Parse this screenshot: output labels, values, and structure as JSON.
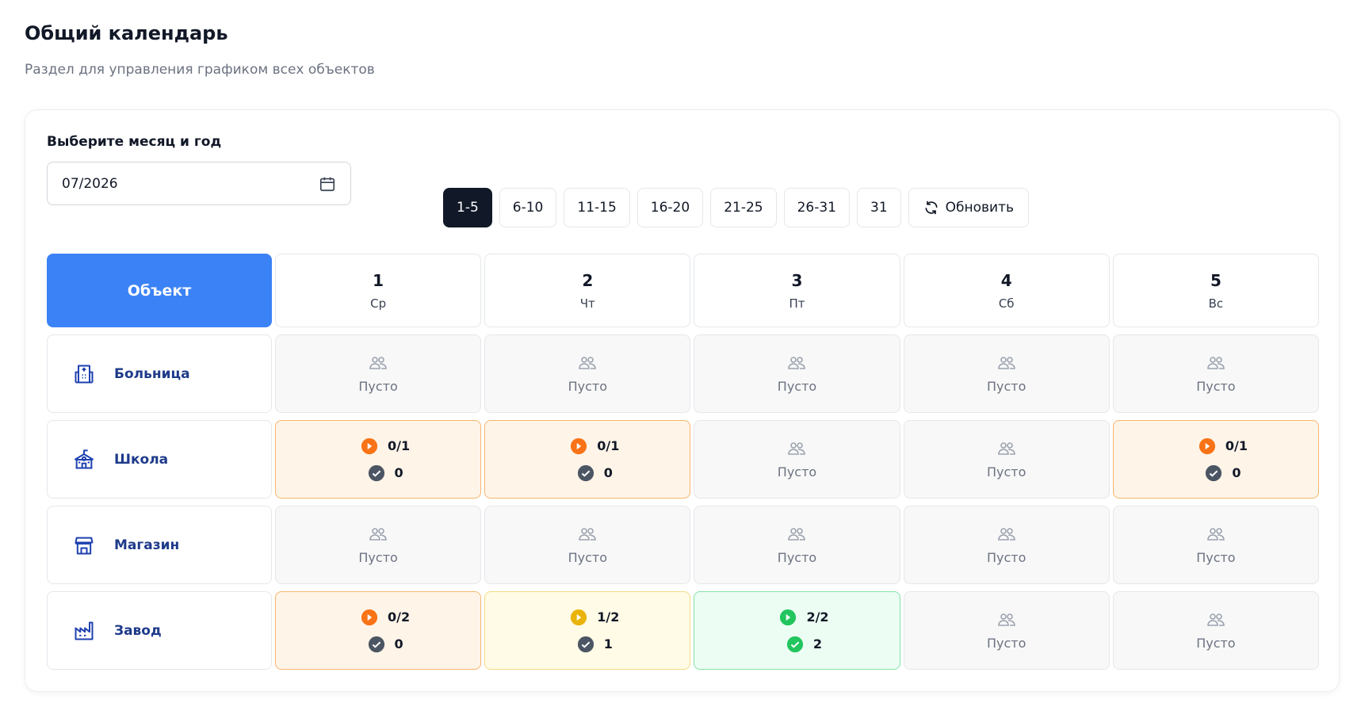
{
  "header": {
    "title": "Общий календарь",
    "subtitle": "Раздел для управления графиком всех объектов"
  },
  "filter": {
    "label": "Выберите месяц и год",
    "value": "07/2026"
  },
  "ranges": {
    "items": [
      "1-5",
      "6-10",
      "11-15",
      "16-20",
      "21-25",
      "26-31",
      "31"
    ],
    "active": 0,
    "refresh": "Обновить"
  },
  "table": {
    "corner": "Объект",
    "days": [
      {
        "day": "1",
        "weekday": "Ср"
      },
      {
        "day": "2",
        "weekday": "Чт"
      },
      {
        "day": "3",
        "weekday": "Пт"
      },
      {
        "day": "4",
        "weekday": "Сб"
      },
      {
        "day": "5",
        "weekday": "Вс"
      }
    ],
    "rows": [
      {
        "name": "Больница",
        "icon": "hospital",
        "cells": [
          {
            "status": "empty",
            "label": "Пусто"
          },
          {
            "status": "empty",
            "label": "Пусто"
          },
          {
            "status": "empty",
            "label": "Пусто"
          },
          {
            "status": "empty",
            "label": "Пусто"
          },
          {
            "status": "empty",
            "label": "Пусто"
          }
        ]
      },
      {
        "name": "Школа",
        "icon": "school",
        "cells": [
          {
            "status": "warning",
            "progress": "0/1",
            "done": "0"
          },
          {
            "status": "warning",
            "progress": "0/1",
            "done": "0"
          },
          {
            "status": "empty",
            "label": "Пусто"
          },
          {
            "status": "empty",
            "label": "Пусто"
          },
          {
            "status": "warning",
            "progress": "0/1",
            "done": "0"
          }
        ]
      },
      {
        "name": "Магазин",
        "icon": "store",
        "cells": [
          {
            "status": "empty",
            "label": "Пусто"
          },
          {
            "status": "empty",
            "label": "Пусто"
          },
          {
            "status": "empty",
            "label": "Пусто"
          },
          {
            "status": "empty",
            "label": "Пусто"
          },
          {
            "status": "empty",
            "label": "Пусто"
          }
        ]
      },
      {
        "name": "Завод",
        "icon": "factory",
        "cells": [
          {
            "status": "warning",
            "progress": "0/2",
            "done": "0"
          },
          {
            "status": "partial",
            "progress": "1/2",
            "done": "1"
          },
          {
            "status": "success",
            "progress": "2/2",
            "done": "2"
          },
          {
            "status": "empty",
            "label": "Пусто"
          },
          {
            "status": "empty",
            "label": "Пусто"
          }
        ]
      }
    ]
  }
}
